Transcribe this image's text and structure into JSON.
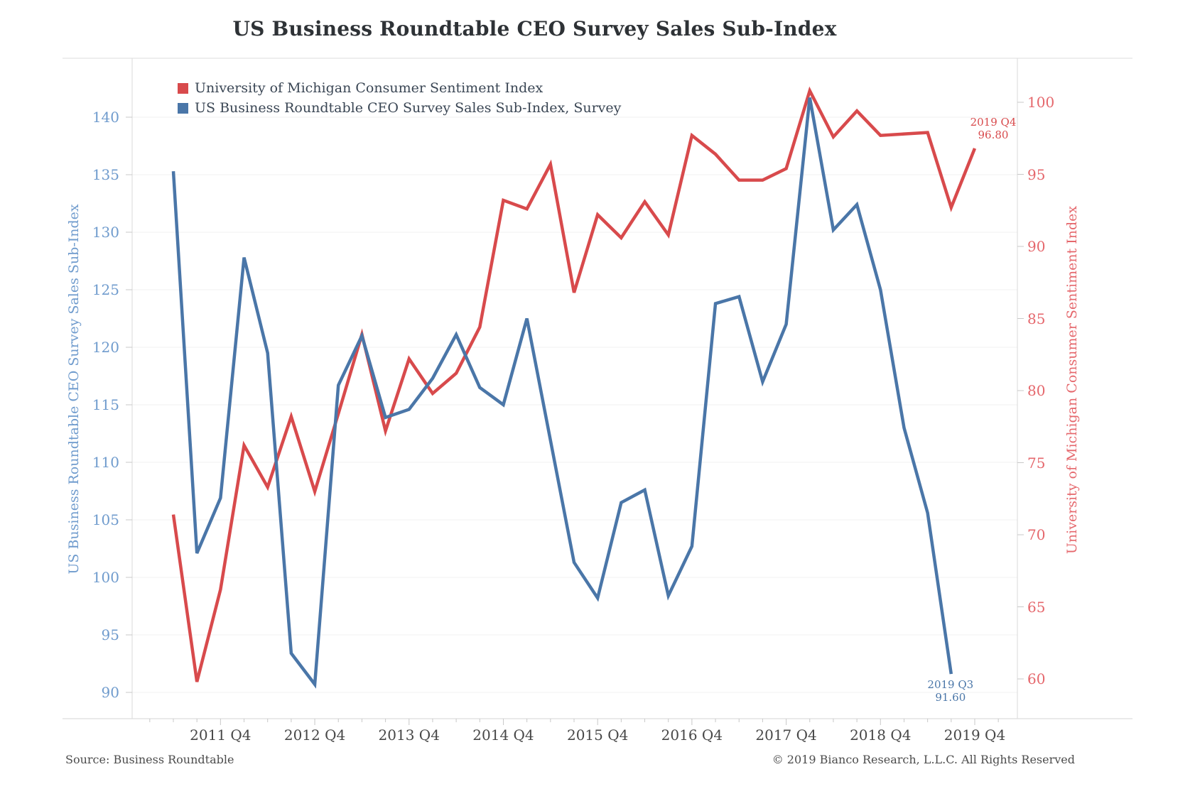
{
  "title": "US Business Roundtable CEO Survey Sales Sub-Index",
  "legend": [
    {
      "label": "University of Michigan Consumer Sentiment Index",
      "color": "#d84a4c"
    },
    {
      "label": "US Business Roundtable CEO Survey Sales Sub-Index, Survey",
      "color": "#4a76a8"
    }
  ],
  "footer": {
    "source": "Source: Business Roundtable",
    "copyright": "© 2019 Bianco Research, L.L.C. All Rights Reserved"
  },
  "chart_data": {
    "type": "line",
    "x": [
      "2011 Q2",
      "2011 Q3",
      "2011 Q4",
      "2012 Q1",
      "2012 Q2",
      "2012 Q3",
      "2012 Q4",
      "2013 Q1",
      "2013 Q2",
      "2013 Q3",
      "2013 Q4",
      "2014 Q1",
      "2014 Q2",
      "2014 Q3",
      "2014 Q4",
      "2015 Q1",
      "2015 Q2",
      "2015 Q3",
      "2015 Q4",
      "2016 Q1",
      "2016 Q2",
      "2016 Q3",
      "2016 Q4",
      "2017 Q1",
      "2017 Q2",
      "2017 Q3",
      "2017 Q4",
      "2018 Q1",
      "2018 Q2",
      "2018 Q3",
      "2018 Q4",
      "2019 Q1",
      "2019 Q2",
      "2019 Q3",
      "2019 Q4"
    ],
    "x_tick_labels": [
      "2011 Q4",
      "2012 Q4",
      "2013 Q4",
      "2014 Q4",
      "2015 Q4",
      "2016 Q4",
      "2017 Q4",
      "2018 Q4",
      "2019 Q4"
    ],
    "series": [
      {
        "name": "University of Michigan Consumer Sentiment Index",
        "axis": "right",
        "color": "#d84a4c",
        "values": [
          71.4,
          59.8,
          66.2,
          76.2,
          73.3,
          78.2,
          73.0,
          78.4,
          83.9,
          77.2,
          82.2,
          79.8,
          81.2,
          84.4,
          93.2,
          92.6,
          95.7,
          86.8,
          92.2,
          90.6,
          93.1,
          90.8,
          97.7,
          96.4,
          94.6,
          94.6,
          95.4,
          100.8,
          97.6,
          99.4,
          97.7,
          97.8,
          97.9,
          92.7,
          96.8
        ]
      },
      {
        "name": "US Business Roundtable CEO Survey Sales Sub-Index, Survey",
        "axis": "left",
        "color": "#4a76a8",
        "values": [
          135.3,
          102.1,
          106.9,
          127.8,
          119.5,
          93.4,
          90.7,
          116.7,
          121.0,
          113.9,
          114.6,
          117.3,
          121.1,
          116.5,
          115.0,
          122.5,
          111.9,
          101.3,
          98.2,
          106.5,
          107.6,
          98.4,
          102.7,
          123.8,
          124.4,
          117.0,
          122.0,
          141.7,
          130.2,
          132.4,
          125.0,
          113.0,
          105.6,
          91.6
        ]
      }
    ],
    "left_axis": {
      "title": "US Business Roundtable CEO Survey Sales Sub-Index",
      "min": 90,
      "max": 140,
      "ticks": [
        90,
        95,
        100,
        105,
        110,
        115,
        120,
        125,
        130,
        135,
        140
      ],
      "label_color": "#6f9bcd"
    },
    "right_axis": {
      "title": "University of Michigan Consumer Sentiment Index",
      "min": 60,
      "max": 100,
      "ticks": [
        60,
        65,
        70,
        75,
        80,
        85,
        90,
        95,
        100
      ],
      "label_color": "#e5676c"
    },
    "grid": "horizontal",
    "legend_position": "top-left-inside",
    "annotations": [
      {
        "series": "University of Michigan Consumer Sentiment Index",
        "lines": [
          "2019 Q4",
          "96.80"
        ],
        "color": "#d84a4c"
      },
      {
        "series": "US Business Roundtable CEO Survey Sales Sub-Index, Survey",
        "lines": [
          "2019 Q3",
          "91.60"
        ],
        "color": "#4a76a8"
      }
    ]
  }
}
